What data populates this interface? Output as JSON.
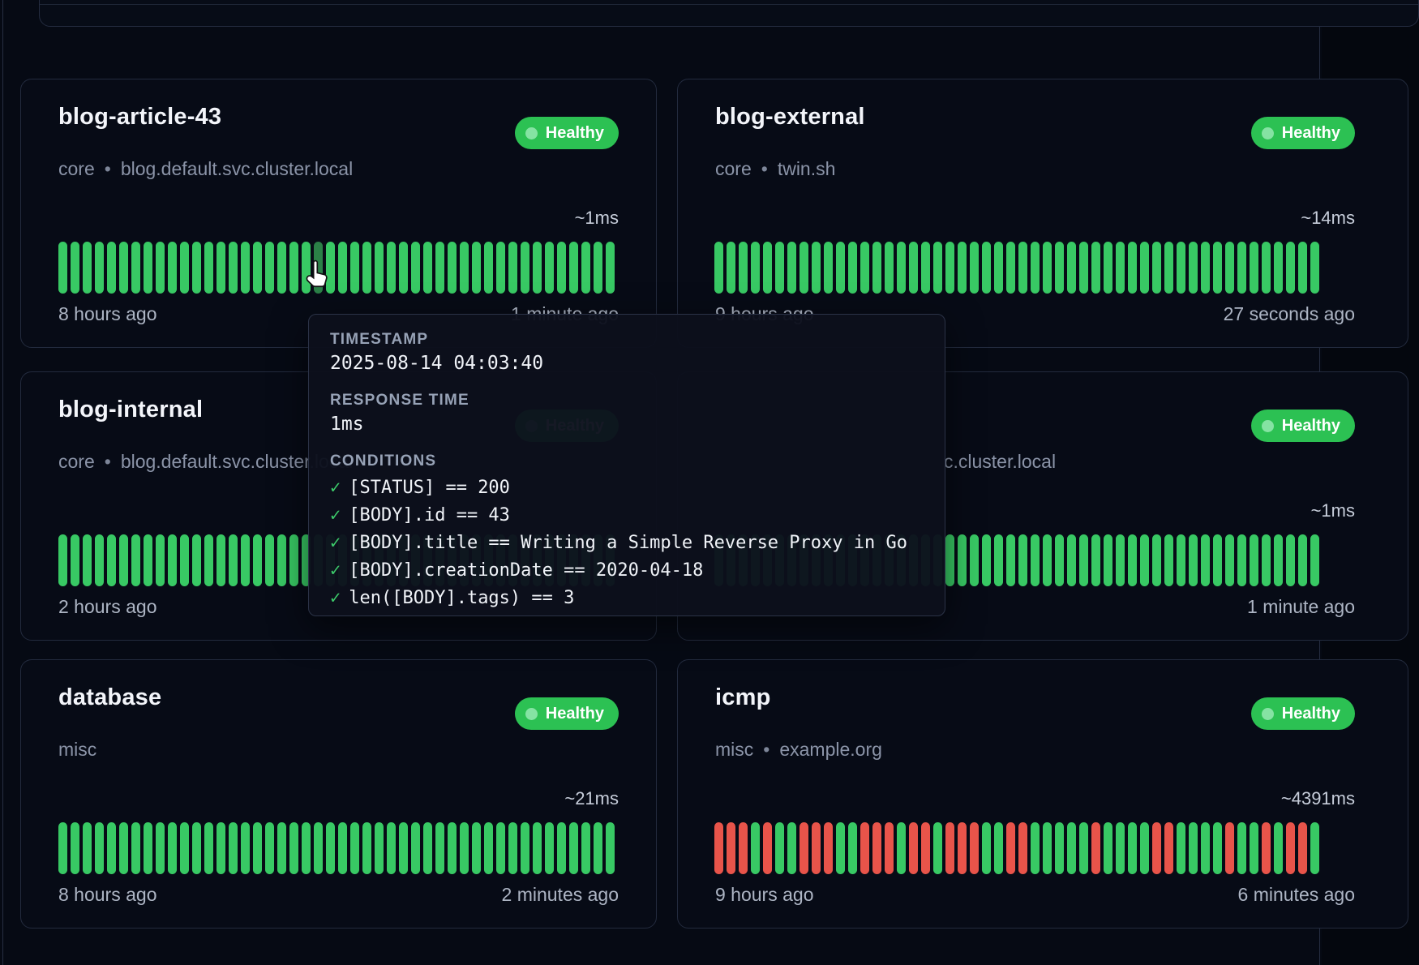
{
  "colors": {
    "bar_green": "#38c964",
    "bar_green_hover": "#2b8047",
    "bar_red": "#e8544a",
    "badge_green": "#2cc153",
    "badge_dot": "#85e3a3",
    "check_green": "#3dcb6b"
  },
  "tooltip": {
    "timestamp_label": "TIMESTAMP",
    "timestamp_value": "2025-08-14 04:03:40",
    "response_label": "RESPONSE TIME",
    "response_value": "1ms",
    "conditions_label": "CONDITIONS",
    "check_glyph": "✓",
    "conditions": [
      "[STATUS] == 200",
      "[BODY].id == 43",
      "[BODY].title == Writing a Simple Reverse Proxy in Go",
      "[BODY].creationDate == 2020-04-18",
      "len([BODY].tags) == 3"
    ]
  },
  "cards": [
    {
      "title": "blog-article-43",
      "group": "core",
      "host": "blog.default.svc.cluster.local",
      "badge": "Healthy",
      "response_time": "~1ms",
      "footer_left": "8 hours ago",
      "footer_right": "1 minute ago",
      "bars": {
        "count": 46,
        "pattern": "",
        "hover_index": 21
      }
    },
    {
      "title": "blog-external",
      "group": "core",
      "host": "twin.sh",
      "badge": "Healthy",
      "response_time": "~14ms",
      "footer_left": "9 hours ago",
      "footer_right": "27 seconds ago",
      "bars": {
        "count": 50,
        "pattern": ""
      }
    },
    {
      "title": "blog-internal",
      "group": "core",
      "host": "blog.default.svc.cluster.local",
      "badge": "Healthy",
      "response_time": "",
      "footer_left": "2 hours ago",
      "footer_right": "",
      "bars": {
        "count": 46,
        "pattern": ""
      }
    },
    {
      "title": "",
      "group": "",
      "host": "",
      "host_visible_fragment": "c.cluster.local",
      "badge": "Healthy",
      "response_time": "~1ms",
      "footer_left": "",
      "footer_right": "1 minute ago",
      "bars": {
        "count": 50,
        "pattern": ""
      }
    },
    {
      "title": "database",
      "group": "misc",
      "host": "",
      "badge": "Healthy",
      "response_time": "~21ms",
      "footer_left": "8 hours ago",
      "footer_right": "2 minutes ago",
      "bars": {
        "count": 46,
        "pattern": ""
      }
    },
    {
      "title": "icmp",
      "group": "misc",
      "host": "example.org",
      "badge": "Healthy",
      "response_time": "~4391ms",
      "footer_left": "9 hours ago",
      "footer_right": "6 minutes ago",
      "bars": {
        "count": 50,
        "pattern": "RRRGRGGRRRGGRRRGRRGRRRGGRRGGGGGRGGGGRRGGGGRGGRGRRG"
      }
    }
  ]
}
